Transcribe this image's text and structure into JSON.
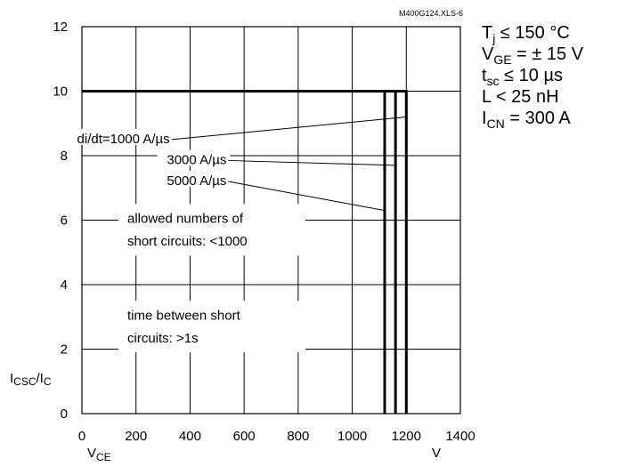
{
  "source_label": "M400G124.XLS-6",
  "conditions": [
    {
      "main": "T",
      "sub": "j",
      "rest": " ≤ 150 °C"
    },
    {
      "main": "V",
      "sub": "GE",
      "rest": " = ± 15 V"
    },
    {
      "main": "t",
      "sub": "sc",
      "rest": " ≤ 10 µs"
    },
    {
      "main": "L < 25 nH",
      "sub": "",
      "rest": ""
    },
    {
      "main": "I",
      "sub": "CN",
      "rest": " = 300 A"
    }
  ],
  "chart_data": {
    "type": "line",
    "title": "",
    "xlabel": {
      "main": "V",
      "sub": "CE",
      "unit": "V"
    },
    "ylabel": {
      "p1": "I",
      "s1": "CSC",
      "p2": "/I",
      "s2": "C"
    },
    "xlim": [
      0,
      1400
    ],
    "ylim": [
      0,
      12
    ],
    "x_ticks": [
      "0",
      "200",
      "400",
      "600",
      "800",
      "1000",
      "1200",
      "1400"
    ],
    "y_ticks": [
      "0",
      "2",
      "4",
      "6",
      "8",
      "10",
      "12"
    ],
    "grid": true,
    "series": [
      {
        "name": "di/dt=1000 A/µs",
        "x": [
          0,
          1200,
          1200
        ],
        "y": [
          10,
          10,
          0
        ]
      },
      {
        "name": "3000 A/µs",
        "x": [
          0,
          1160,
          1160
        ],
        "y": [
          10,
          10,
          0
        ]
      },
      {
        "name": "5000 A/µs",
        "x": [
          0,
          1120,
          1120
        ],
        "y": [
          10,
          10,
          0
        ]
      }
    ],
    "annotations": [
      {
        "text": "di/dt=1000 A/µs",
        "x": 325,
        "y": 8.5,
        "pointer": [
          1200,
          9.2
        ]
      },
      {
        "text": "3000 A/µs",
        "x": 535,
        "y": 7.85,
        "pointer": [
          1160,
          7.7
        ]
      },
      {
        "text": "5000 A/µs",
        "x": 535,
        "y": 7.2,
        "pointer": [
          1120,
          6.3
        ]
      }
    ],
    "notes": [
      {
        "lines": [
          "allowed numbers of",
          "short circuits: <1000"
        ]
      },
      {
        "lines": [
          "time between short",
          "circuits: >1s"
        ]
      }
    ]
  }
}
